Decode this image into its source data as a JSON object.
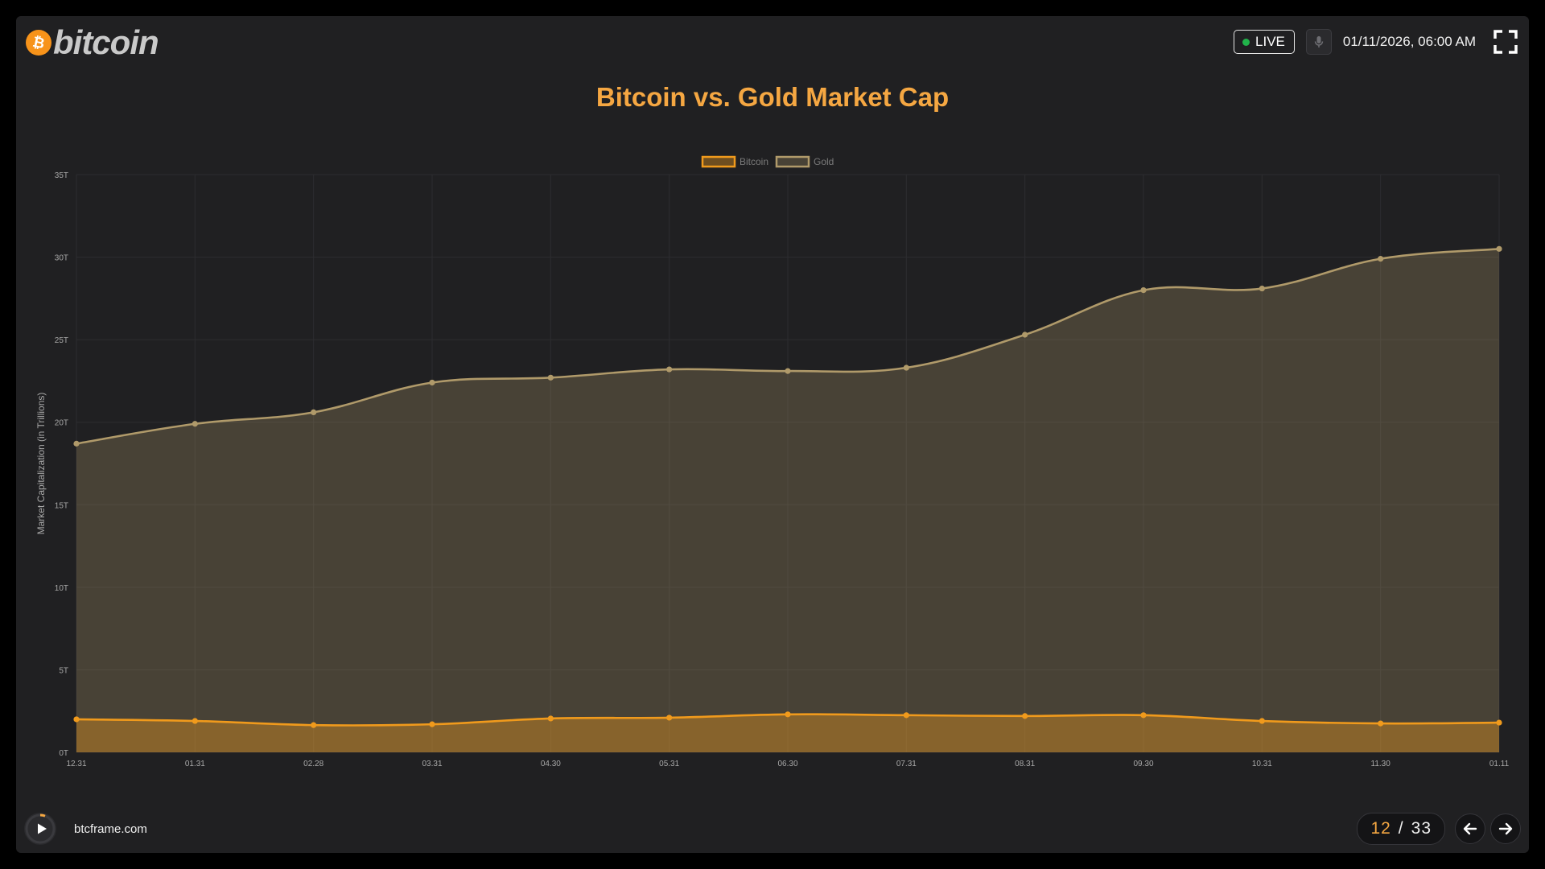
{
  "header": {
    "logo_text": "bitcoin",
    "live_label": "LIVE",
    "datetime": "01/11/2026, 06:00 AM"
  },
  "icons": {
    "logo": "bitcoin-coin-icon",
    "live": "live-dot-icon",
    "mic": "microphone-icon",
    "fullscreen": "fullscreen-icon",
    "play": "play-icon",
    "prev": "arrow-left-icon",
    "next": "arrow-right-icon"
  },
  "colors": {
    "accent": "#f5a742",
    "bitcoin_line": "#f09a1c",
    "gold_line": "#b09a6a",
    "live_dot": "#21b34a"
  },
  "chart_data": {
    "type": "area",
    "title": "Bitcoin vs. Gold Market Cap",
    "xlabel": "",
    "ylabel": "Market Capitalization (in Trillions)",
    "x": [
      "12.31",
      "01.31",
      "02.28",
      "03.31",
      "04.30",
      "05.31",
      "06.30",
      "07.31",
      "08.31",
      "09.30",
      "10.31",
      "11.30",
      "01.11"
    ],
    "y_ticks": [
      "0T",
      "5T",
      "10T",
      "15T",
      "20T",
      "25T",
      "30T",
      "35T"
    ],
    "ylim": [
      0,
      35
    ],
    "grid": true,
    "legend_position": "top",
    "series": [
      {
        "name": "Bitcoin",
        "color": "#f09a1c",
        "values": [
          2.0,
          1.9,
          1.65,
          1.7,
          2.05,
          2.1,
          2.3,
          2.25,
          2.2,
          2.25,
          1.9,
          1.75,
          1.8
        ]
      },
      {
        "name": "Gold",
        "color": "#b09a6a",
        "values": [
          18.7,
          19.9,
          20.6,
          22.4,
          22.7,
          23.2,
          23.1,
          23.3,
          25.3,
          28.0,
          28.1,
          29.9,
          30.5
        ]
      }
    ]
  },
  "footer": {
    "site": "btcframe.com",
    "page_current": "12",
    "page_separator": "/",
    "page_total": "33"
  }
}
